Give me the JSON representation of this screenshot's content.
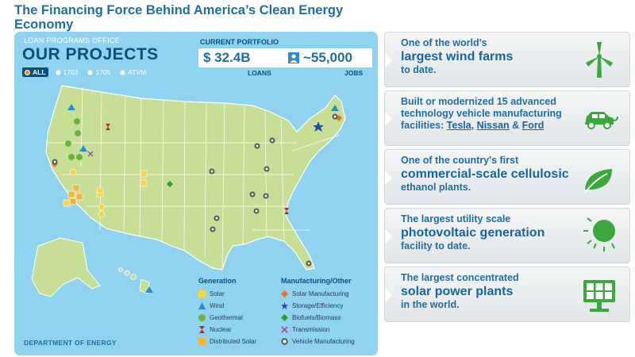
{
  "title": "The Financing Force Behind America’s Clean Energy Economy",
  "map": {
    "office_label": "LOAN PROGRAMS OFFICE",
    "heading": "OUR PROJECTS",
    "filters": [
      "ALL",
      "1703",
      "1705",
      "ATVM"
    ],
    "portfolio_label": "CURRENT PORTFOLIO",
    "loans_value": "$ 32.4B",
    "loans_label": "LOANS",
    "jobs_value": "~55,000",
    "jobs_label": "JOBS",
    "footer": "DEPARTMENT OF ENERGY"
  },
  "legend": {
    "generation_header": "Generation",
    "generation": [
      "Solar",
      "Wind",
      "Geothermal",
      "Nuclear",
      "Distributed Solar"
    ],
    "manufacturing_header": "Manufacturing/Other",
    "manufacturing": [
      "Solar Manufacturing",
      "Storage/Efficiency",
      "Biofuels/Biomass",
      "Transmission",
      "Vehicle Manufacturing"
    ]
  },
  "colors": {
    "title_blue": "#1d6fa3",
    "map_water": "#8fd3f0",
    "land": "#c6df95",
    "solar": "#f7d44a",
    "wind": "#2b8ccc",
    "geothermal": "#6bb33a",
    "nuclear": "#b1282c",
    "distributed_solar": "#f2b33a",
    "solar_manufacturing": "#e6721b",
    "storage": "#1e4c9a",
    "biofuels": "#2f9a3a",
    "transmission": "#9c4f9e",
    "vehicle": "#555555",
    "icon_green": "#3aa83a"
  },
  "cards": [
    {
      "line1": "One of the world's",
      "line2": "largest wind farms",
      "line3": "to date.",
      "icon": "wind-turbine-icon"
    },
    {
      "line1": "Built or modernized 15 advanced",
      "line2": "technology vehicle manufacturing",
      "line3_prefix": "facilities: ",
      "link1": "Tesla",
      "sep1": ", ",
      "link2": "Nissan",
      "sep2": " & ",
      "link3": "Ford",
      "icon": "electric-car-icon"
    },
    {
      "line1": "One of the country's first",
      "line2": "commercial-scale cellulosic",
      "line3": "ethanol plants.",
      "icon": "leaf-icon"
    },
    {
      "line1": "The largest utility scale",
      "line2": "photovoltaic generation",
      "line3": "facility to date.",
      "icon": "sun-icon"
    },
    {
      "line1": "The largest concentrated",
      "line2": "solar power plants",
      "line3": "in the world.",
      "icon": "solar-panel-icon"
    }
  ]
}
